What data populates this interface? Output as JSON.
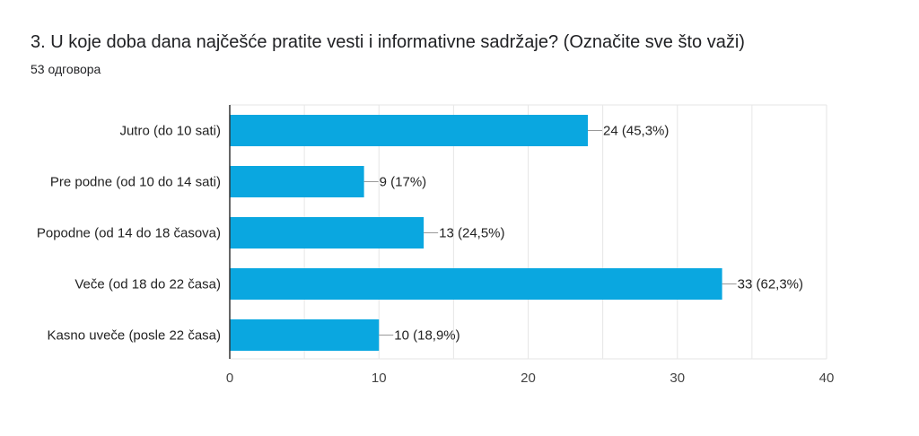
{
  "question": {
    "title": "3. U koje doba dana najčešće pratite vesti i informativne sadržaje? (Označite sve što važi)",
    "response_count": "53 одговора"
  },
  "colors": {
    "bar": "#0aa7e0",
    "axis": "#333333",
    "grid": "#e6e6e6",
    "leader": "#999999"
  },
  "chart_data": {
    "type": "bar",
    "orientation": "horizontal",
    "title": "3. U koje doba dana najčešće pratite vesti i informativne sadržaje? (Označite sve što važi)",
    "categories": [
      "Jutro (do 10 sati)",
      "Pre podne (od 10 do 14 sati)",
      "Popodne (od 14 do 18 časova)",
      "Veče (od 18 do 22 časa)",
      "Kasno uveče (posle 22 časa)"
    ],
    "values": [
      24,
      9,
      13,
      33,
      10
    ],
    "data_labels": [
      "24 (45,3%)",
      "9 (17%)",
      "13 (24,5%)",
      "33 (62,3%)",
      "10 (18,9%)"
    ],
    "xlim": [
      0,
      40
    ],
    "xticks": [
      0,
      10,
      20,
      30,
      40
    ],
    "xtick_labels": [
      "0",
      "10",
      "20",
      "30",
      "40"
    ],
    "grid": true,
    "legend": "none"
  }
}
